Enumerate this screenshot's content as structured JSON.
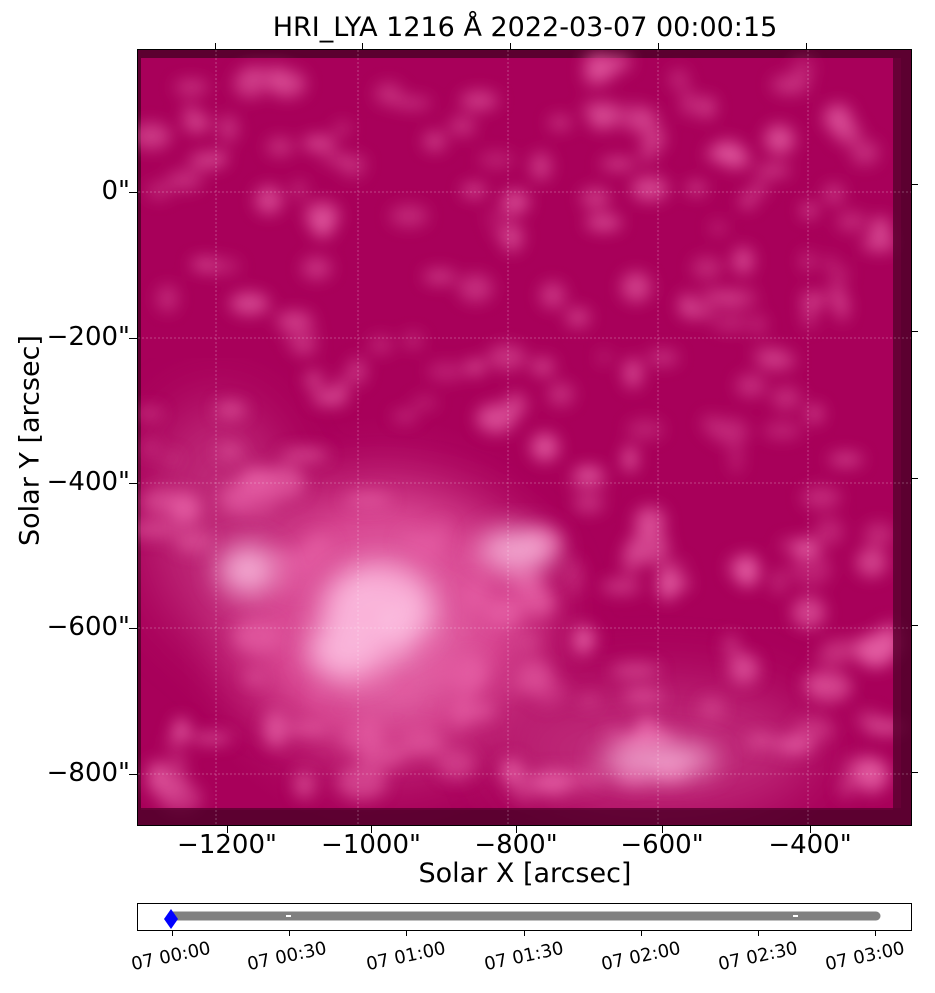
{
  "figure": {
    "title": "HRI_LYA 1216 Å 2022-03-07 00:00:15",
    "xlabel": "Solar X [arcsec]",
    "ylabel": "Solar Y [arcsec]",
    "colormap_colors": [
      "#5c0030",
      "#a8005a",
      "#e0509a",
      "#ffc8e6"
    ],
    "y_ticks": [
      "0\"",
      "−200\"",
      "−400\"",
      "−600\"",
      "−800\""
    ],
    "x_ticks": [
      "−1200\"",
      "−1000\"",
      "−800\"",
      "−600\"",
      "−400\""
    ]
  },
  "timeline": {
    "ticks": [
      "07 00:00",
      "07 00:30",
      "07 01:00",
      "07 01:30",
      "07 02:00",
      "07 02:30",
      "07 03:00"
    ],
    "point_color": "#808080",
    "current_marker_color": "#0000ff"
  }
}
